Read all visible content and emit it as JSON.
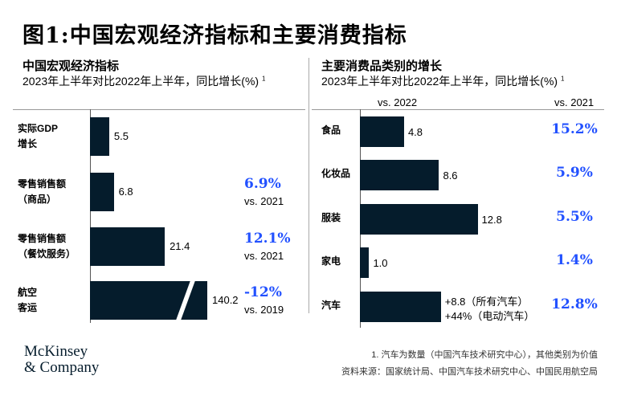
{
  "title": "图1:中国宏观经济指标和主要消费指标",
  "chart_data": [
    {
      "type": "bar",
      "orientation": "horizontal",
      "title": "中国宏观经济指标",
      "subtitle": "2023年上半年对比2022年上半年，同比增长(%)",
      "subtitle_note": "1",
      "categories": [
        "实际GDP\n增长",
        "零售销售额\n（商品）",
        "零售销售额\n（餐饮服务）",
        "航空\n客运"
      ],
      "category_lines": [
        [
          "实际GDP",
          "增长"
        ],
        [
          "零售销售额",
          "（商品）"
        ],
        [
          "零售销售额",
          "（餐饮服务）"
        ],
        [
          "航空",
          "客运"
        ]
      ],
      "values": [
        5.5,
        6.8,
        21.4,
        140.2
      ],
      "value_labels": [
        "5.5",
        "6.8",
        "21.4",
        "140.2"
      ],
      "axis_break_on": [
        3
      ],
      "comparisons": [
        null,
        {
          "value": "6.9%",
          "label": "vs. 2021"
        },
        {
          "value": "12.1%",
          "label": "vs. 2021"
        },
        {
          "value": "-12%",
          "label": "vs. 2019"
        }
      ],
      "bar_color": "#051c2c",
      "highlight_color": "#2251ff"
    },
    {
      "type": "bar",
      "orientation": "horizontal",
      "title": "主要消费品类别的增长",
      "subtitle": "2023年上半年对比2022年上半年，同比增长(%)",
      "subtitle_note": "1",
      "column_headers": [
        "vs. 2022",
        "vs. 2021"
      ],
      "categories": [
        "食品",
        "化妆品",
        "服装",
        "家电",
        "汽车"
      ],
      "values": [
        4.8,
        8.6,
        12.8,
        1.0,
        8.8
      ],
      "value_labels": [
        "4.8",
        "8.6",
        "12.8",
        "1.0",
        [
          "+8.8（所有汽车）",
          "+44%（电动汽车）"
        ]
      ],
      "vs_2021": [
        "15.2%",
        "5.9%",
        "5.5%",
        "1.4%",
        "12.8%"
      ],
      "bar_color": "#051c2c",
      "highlight_color": "#2251ff"
    }
  ],
  "footnotes": [
    "1.  汽车为数量（中国汽车技术研究中心），其他类别为价值",
    "资料来源：国家统计局、中国汽车技术研究中心、中国民用航空局"
  ],
  "logo": [
    "McKinsey",
    "& Company"
  ]
}
